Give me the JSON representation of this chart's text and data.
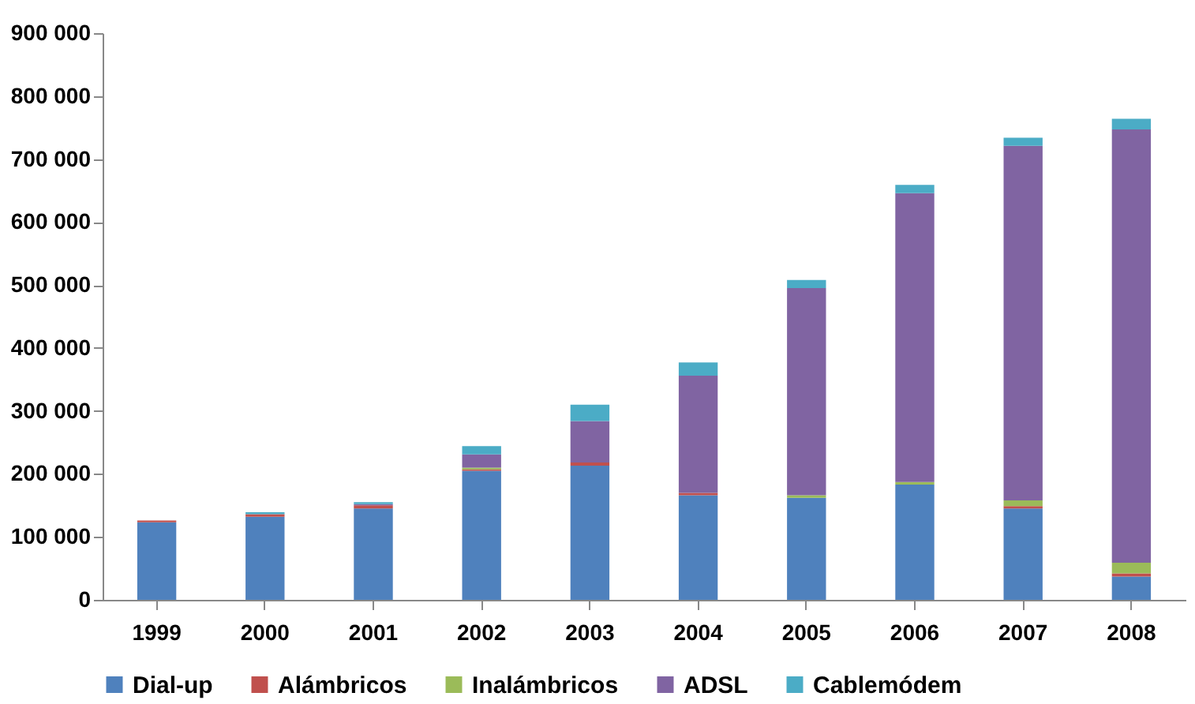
{
  "chart_data": {
    "type": "bar",
    "stacked": true,
    "categories": [
      "1999",
      "2000",
      "2001",
      "2002",
      "2003",
      "2004",
      "2005",
      "2006",
      "2007",
      "2008"
    ],
    "series": [
      {
        "name": "Dial-up",
        "color": "#4f81bd",
        "values": [
          123000,
          132000,
          145000,
          205000,
          213000,
          166000,
          162000,
          183000,
          145000,
          37000
        ]
      },
      {
        "name": "Alámbricos",
        "color": "#c0504d",
        "values": [
          3000,
          4000,
          5000,
          2000,
          5000,
          4000,
          0,
          0,
          4000,
          5000
        ]
      },
      {
        "name": "Inalámbricos",
        "color": "#9bbb59",
        "values": [
          0,
          0,
          0,
          3000,
          0,
          0,
          4000,
          4000,
          9000,
          17000
        ]
      },
      {
        "name": "ADSL",
        "color": "#8064a2",
        "values": [
          0,
          0,
          2000,
          21000,
          66000,
          186000,
          329000,
          459000,
          563000,
          688000
        ]
      },
      {
        "name": "Cablemódem",
        "color": "#4bacc6",
        "values": [
          null,
          3000,
          3000,
          13000,
          26000,
          21000,
          13000,
          13000,
          13000,
          17000
        ]
      }
    ],
    "ylim": [
      0,
      900000
    ],
    "yticks": [
      {
        "value": 0,
        "label": "0"
      },
      {
        "value": 100000,
        "label": "100 000"
      },
      {
        "value": 200000,
        "label": "200 000"
      },
      {
        "value": 300000,
        "label": "300 000"
      },
      {
        "value": 400000,
        "label": "400 000"
      },
      {
        "value": 500000,
        "label": "500 000"
      },
      {
        "value": 600000,
        "label": "600 000"
      },
      {
        "value": 700000,
        "label": "700 000"
      },
      {
        "value": 800000,
        "label": "800 000"
      },
      {
        "value": 900000,
        "label": "900 000"
      }
    ],
    "grid": false,
    "legend": "bottom"
  }
}
